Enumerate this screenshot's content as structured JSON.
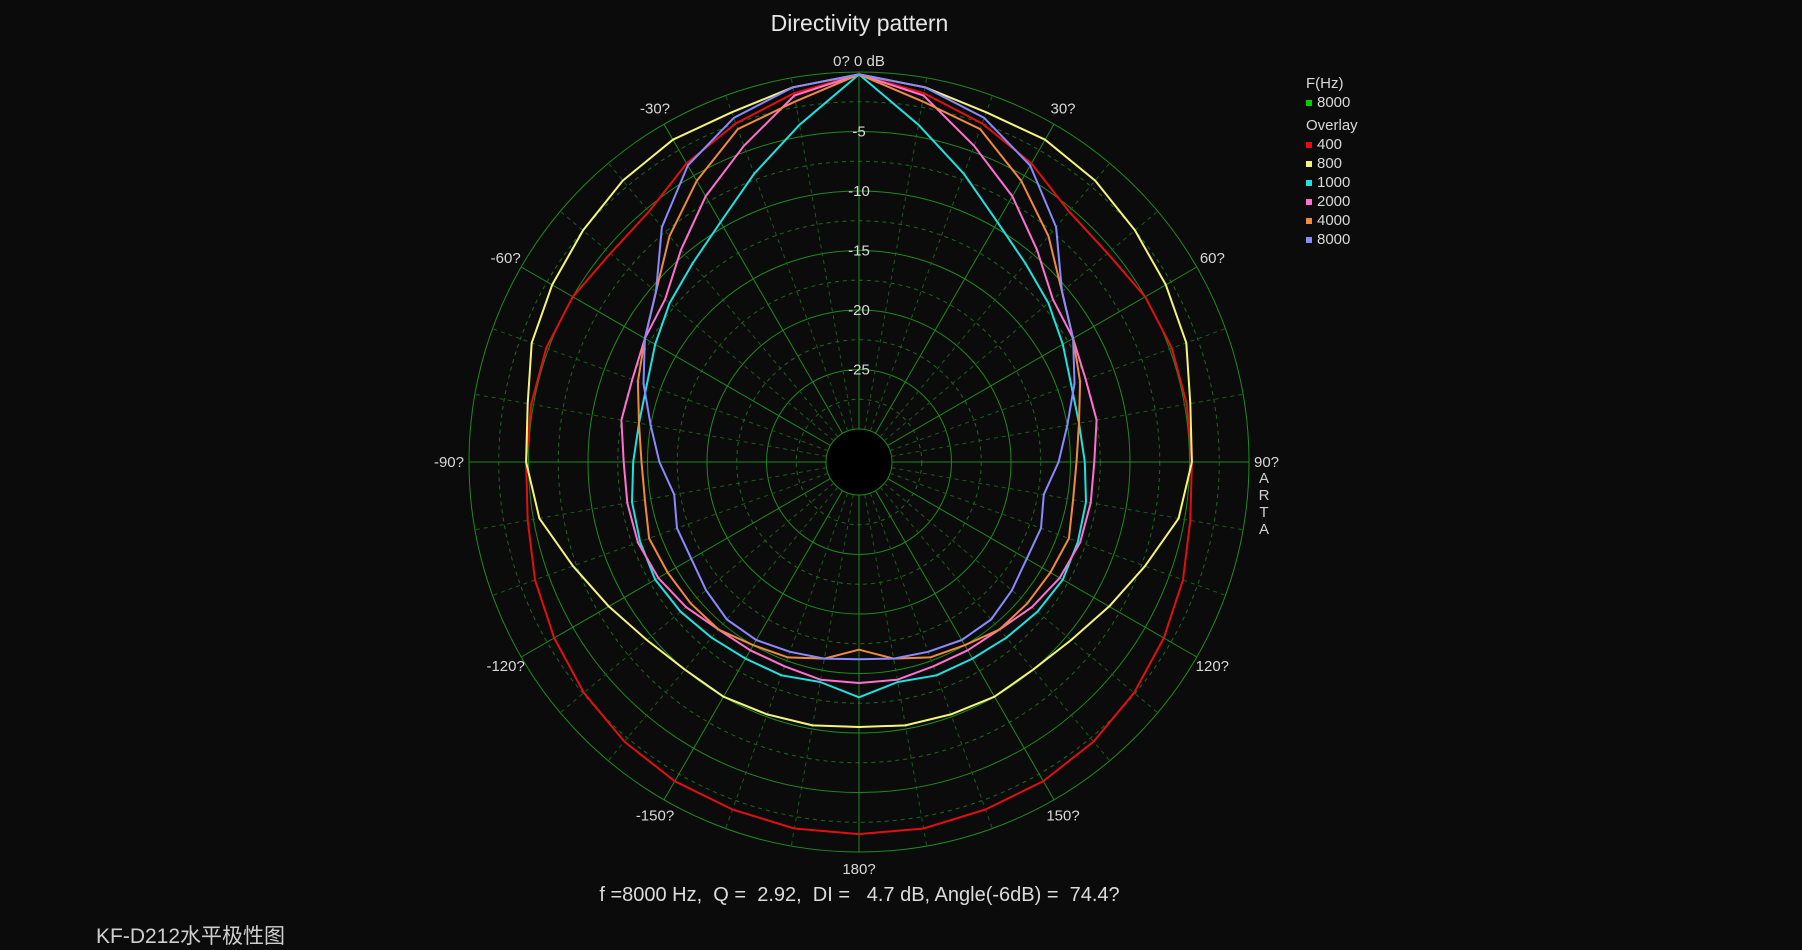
{
  "title": "Directivity pattern",
  "stats_line": "f =8000 Hz,  Q =  2.92,  DI =   4.7 dB, Angle(-6dB) =  74.4?",
  "caption": "KF-D212水平极性图",
  "watermark": [
    "A",
    "R",
    "T",
    "A"
  ],
  "legend": {
    "freq_header": "F(Hz)",
    "freq_items": [
      {
        "label": "8000",
        "color": "#00d000"
      }
    ],
    "overlay_header": "Overlay",
    "overlay_items": [
      {
        "label": "400",
        "color": "#e01010"
      },
      {
        "label": "800",
        "color": "#f4f47a"
      },
      {
        "label": "1000",
        "color": "#20e0e0"
      },
      {
        "label": "2000",
        "color": "#ff70d0"
      },
      {
        "label": "4000",
        "color": "#f08a40"
      },
      {
        "label": "8000",
        "color": "#8a8aff"
      }
    ]
  },
  "chart_data": {
    "type": "polar",
    "title": "Directivity pattern",
    "radial_unit": "dB",
    "rlim": [
      -30,
      0
    ],
    "radial_ticks": [
      {
        "value": 0,
        "label": "0 dB"
      },
      {
        "value": -5,
        "label": "-5"
      },
      {
        "value": -10,
        "label": "-10"
      },
      {
        "value": -15,
        "label": "-15"
      },
      {
        "value": -20,
        "label": "-20"
      },
      {
        "value": -25,
        "label": "-25"
      }
    ],
    "angle_ticks": [
      {
        "angle": 0,
        "label": "0?"
      },
      {
        "angle": 30,
        "label": "30?"
      },
      {
        "angle": 60,
        "label": "60?"
      },
      {
        "angle": 90,
        "label": "90?"
      },
      {
        "angle": 120,
        "label": "120?"
      },
      {
        "angle": 150,
        "label": "150?"
      },
      {
        "angle": 180,
        "label": "180?"
      },
      {
        "angle": -150,
        "label": "-150?"
      },
      {
        "angle": -120,
        "label": "-120?"
      },
      {
        "angle": -90,
        "label": "-90?"
      },
      {
        "angle": -60,
        "label": "-60?"
      },
      {
        "angle": -30,
        "label": "-30?"
      }
    ],
    "grid": true,
    "symmetric": true,
    "angles": [
      0,
      10,
      20,
      30,
      40,
      50,
      60,
      70,
      80,
      90,
      100,
      110,
      120,
      130,
      140,
      150,
      160,
      170,
      180
    ],
    "series": [
      {
        "name": "400",
        "color": "#e01010",
        "values": [
          -0.2,
          -1.3,
          -2.5,
          -3.8,
          -5.3,
          -5.5,
          -5.0,
          -4.8,
          -4.8,
          -4.8,
          -4.5,
          -3.8,
          -3.2,
          -2.6,
          -2.1,
          -1.8,
          -1.7,
          -1.5,
          -1.5
        ]
      },
      {
        "name": "800",
        "color": "#f4f47a",
        "values": [
          -0.2,
          -0.8,
          -1.5,
          -1.5,
          -1.9,
          -2.5,
          -3.0,
          -3.5,
          -4.5,
          -4.8,
          -5.5,
          -7.2,
          -8.5,
          -9.5,
          -10.0,
          -10.0,
          -10.2,
          -10.3,
          -10.5
        ]
      },
      {
        "name": "1000",
        "color": "#20e0e0",
        "values": [
          -0.2,
          -4.0,
          -7.0,
          -9.5,
          -11.0,
          -12.0,
          -13.0,
          -13.8,
          -14.0,
          -13.8,
          -13.4,
          -13.2,
          -13.0,
          -13.2,
          -13.5,
          -13.7,
          -13.7,
          -14.0,
          -13.0
        ]
      },
      {
        "name": "2000",
        "color": "#ff70d0",
        "values": [
          -0.2,
          -1.5,
          -4.5,
          -7.0,
          -9.5,
          -11.5,
          -12.0,
          -12.5,
          -12.5,
          -13.0,
          -13.0,
          -13.0,
          -13.3,
          -13.8,
          -14.4,
          -14.5,
          -14.5,
          -14.2,
          -14.2
        ]
      },
      {
        "name": "4000",
        "color": "#f08a40",
        "values": [
          -0.2,
          -2.0,
          -3.0,
          -5.5,
          -8.0,
          -10.5,
          -12.0,
          -13.0,
          -14.0,
          -14.5,
          -14.5,
          -14.0,
          -14.2,
          -14.3,
          -14.4,
          -15.0,
          -15.3,
          -16.0,
          -17.0
        ]
      },
      {
        "name": "8000",
        "color": "#8a8aff",
        "values": [
          -0.2,
          -0.8,
          -2.0,
          -4.0,
          -7.0,
          -10.5,
          -12.0,
          -13.5,
          -15.0,
          -16.0,
          -17.0,
          -16.5,
          -16.5,
          -16.0,
          -15.5,
          -15.5,
          -15.8,
          -16.0,
          -16.2
        ]
      }
    ]
  }
}
